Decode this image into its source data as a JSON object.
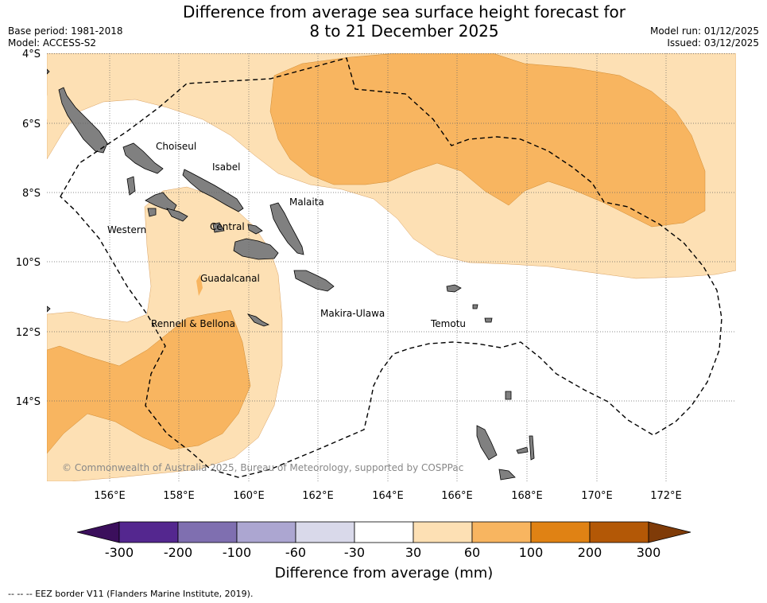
{
  "header": {
    "title_line1": "Difference from average sea surface height forecast for",
    "title_line2": "8 to 21 December 2025",
    "base_period": "Base period: 1981-2018",
    "model": "Model: ACCESS-S2",
    "model_run": "Model run: 01/12/2025",
    "issued": "Issued: 03/12/2025"
  },
  "map": {
    "lat_labels": [
      "4°S",
      "6°S",
      "8°S",
      "10°S",
      "12°S",
      "14°S"
    ],
    "lon_labels": [
      "156°E",
      "158°E",
      "160°E",
      "162°E",
      "164°E",
      "166°E",
      "168°E",
      "170°E",
      "172°E"
    ],
    "regions": [
      "Choiseul",
      "Isabel",
      "Malaita",
      "Western",
      "Central",
      "Guadalcanal",
      "Makira-Ulawa",
      "Rennell & Bellona",
      "Temotu"
    ],
    "copyright": "© Commonwealth of Australia 2025, Bureau of Meteorology, supported by COSPPac",
    "land_color": "#808080",
    "eez_style": "dashed"
  },
  "colorbar": {
    "label": "Difference from average (mm)",
    "ticks": [
      "-300",
      "-200",
      "-100",
      "-60",
      "-30",
      "30",
      "60",
      "100",
      "200",
      "300"
    ],
    "colors": [
      "#3b0f5c",
      "#54278f",
      "#7f6fb0",
      "#aca6d1",
      "#d9d9ea",
      "#ffffff",
      "#fde0b4",
      "#f8b560",
      "#e08214",
      "#b35806",
      "#7f3b08"
    ]
  },
  "footnote": "--  --  -- EEZ border V11 (Flanders Marine Institute, 2019)."
}
